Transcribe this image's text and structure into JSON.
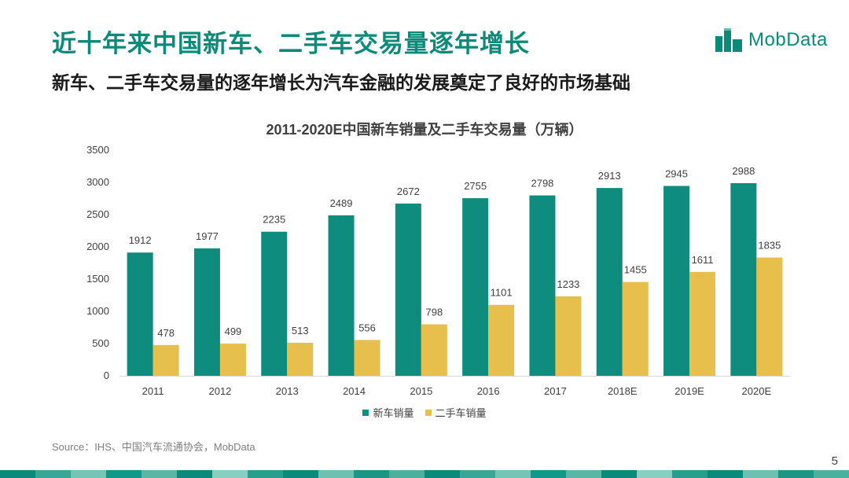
{
  "header": {
    "title": "近十年来中国新车、二手车交易量逐年增长",
    "subtitle": "新车、二手车交易量的逐年增长为汽车金融的发展奠定了良好的市场基础"
  },
  "logo": {
    "text": "MobData"
  },
  "chart_data": {
    "type": "bar",
    "title": "2011-2020E中国新车销量及二手车交易量（万辆）",
    "categories": [
      "2011",
      "2012",
      "2013",
      "2014",
      "2015",
      "2016",
      "2017",
      "2018E",
      "2019E",
      "2020E"
    ],
    "series": [
      {
        "name": "新车销量",
        "color": "#0e8c7e",
        "values": [
          1912,
          1977,
          2235,
          2489,
          2672,
          2755,
          2798,
          2913,
          2945,
          2988
        ]
      },
      {
        "name": "二手车销量",
        "color": "#e6bf4c",
        "values": [
          478,
          499,
          513,
          556,
          798,
          1101,
          1233,
          1455,
          1611,
          1835
        ]
      }
    ],
    "ylim": [
      0,
      3500
    ],
    "yticks": [
      0,
      500,
      1000,
      1500,
      2000,
      2500,
      3000,
      3500
    ],
    "xlabel": "",
    "ylabel": "",
    "grid": false,
    "legend_position": "bottom"
  },
  "footer": {
    "source": "Source：IHS、中国汽车流通协会，MobData",
    "page_number": "5"
  },
  "colors": {
    "accent": "#0a8a78",
    "new_car": "#0e8c7e",
    "used_car": "#e6bf4c"
  }
}
